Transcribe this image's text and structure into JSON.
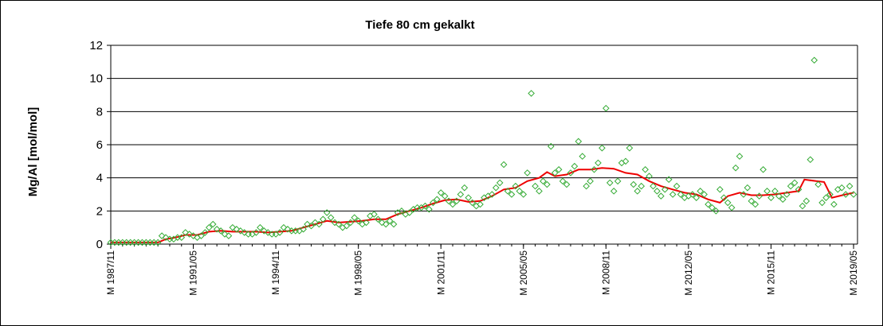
{
  "chart_data": {
    "type": "scatter",
    "title": "Tiefe   80 cm      gekalkt",
    "xlabel": "",
    "ylabel": "Mg/Al [mol/mol]",
    "ylim": [
      0,
      12
    ],
    "yticks": [
      0,
      2,
      4,
      6,
      8,
      10,
      12
    ],
    "xlim": [
      "1987-11",
      "2019-07"
    ],
    "xticks": [
      {
        "label": "M 1987/11",
        "date": "1987-11"
      },
      {
        "label": "M 1991/05",
        "date": "1991-05"
      },
      {
        "label": "M 1994/11",
        "date": "1994-11"
      },
      {
        "label": "M 1998/05",
        "date": "1998-05"
      },
      {
        "label": "M 2001/11",
        "date": "2001-11"
      },
      {
        "label": "M 2005/05",
        "date": "2005-05"
      },
      {
        "label": "M 2008/11",
        "date": "2008-11"
      },
      {
        "label": "M 2012/05",
        "date": "2012-05"
      },
      {
        "label": "M 2015/11",
        "date": "2015-11"
      },
      {
        "label": "M 2019/05",
        "date": "2019-05"
      }
    ],
    "grid": "horizontal",
    "legend": "none",
    "colors": {
      "points": "#33aa33",
      "trend": "#ee0000"
    },
    "series": [
      {
        "kind": "points",
        "points": [
          [
            "1987-11",
            0.1
          ],
          [
            "1988-01",
            0.1
          ],
          [
            "1988-03",
            0.1
          ],
          [
            "1988-05",
            0.1
          ],
          [
            "1988-07",
            0.1
          ],
          [
            "1988-09",
            0.1
          ],
          [
            "1988-11",
            0.1
          ],
          [
            "1989-01",
            0.1
          ],
          [
            "1989-03",
            0.1
          ],
          [
            "1989-05",
            0.1
          ],
          [
            "1989-07",
            0.1
          ],
          [
            "1989-09",
            0.1
          ],
          [
            "1989-11",
            0.1
          ],
          [
            "1990-01",
            0.5
          ],
          [
            "1990-03",
            0.4
          ],
          [
            "1990-05",
            0.3
          ],
          [
            "1990-07",
            0.3
          ],
          [
            "1990-09",
            0.4
          ],
          [
            "1990-11",
            0.4
          ],
          [
            "1991-01",
            0.7
          ],
          [
            "1991-03",
            0.6
          ],
          [
            "1991-05",
            0.5
          ],
          [
            "1991-07",
            0.4
          ],
          [
            "1991-09",
            0.5
          ],
          [
            "1991-11",
            0.7
          ],
          [
            "1992-01",
            1.0
          ],
          [
            "1992-03",
            1.2
          ],
          [
            "1992-05",
            0.9
          ],
          [
            "1992-07",
            0.8
          ],
          [
            "1992-09",
            0.6
          ],
          [
            "1992-11",
            0.5
          ],
          [
            "1993-01",
            1.0
          ],
          [
            "1993-03",
            0.9
          ],
          [
            "1993-05",
            0.8
          ],
          [
            "1993-07",
            0.7
          ],
          [
            "1993-09",
            0.6
          ],
          [
            "1993-11",
            0.6
          ],
          [
            "1994-01",
            0.7
          ],
          [
            "1994-03",
            1.0
          ],
          [
            "1994-05",
            0.8
          ],
          [
            "1994-07",
            0.7
          ],
          [
            "1994-09",
            0.6
          ],
          [
            "1994-11",
            0.6
          ],
          [
            "1995-01",
            0.7
          ],
          [
            "1995-03",
            1.0
          ],
          [
            "1995-05",
            0.9
          ],
          [
            "1995-07",
            0.8
          ],
          [
            "1995-09",
            0.8
          ],
          [
            "1995-11",
            0.8
          ],
          [
            "1996-01",
            0.9
          ],
          [
            "1996-03",
            1.2
          ],
          [
            "1996-05",
            1.1
          ],
          [
            "1996-07",
            1.3
          ],
          [
            "1996-09",
            1.2
          ],
          [
            "1996-11",
            1.5
          ],
          [
            "1997-01",
            1.9
          ],
          [
            "1997-03",
            1.6
          ],
          [
            "1997-05",
            1.3
          ],
          [
            "1997-07",
            1.2
          ],
          [
            "1997-09",
            1.0
          ],
          [
            "1997-11",
            1.1
          ],
          [
            "1998-01",
            1.3
          ],
          [
            "1998-03",
            1.6
          ],
          [
            "1998-05",
            1.4
          ],
          [
            "1998-07",
            1.2
          ],
          [
            "1998-09",
            1.3
          ],
          [
            "1998-11",
            1.7
          ],
          [
            "1999-01",
            1.8
          ],
          [
            "1999-03",
            1.5
          ],
          [
            "1999-05",
            1.3
          ],
          [
            "1999-07",
            1.2
          ],
          [
            "1999-09",
            1.4
          ],
          [
            "1999-11",
            1.2
          ],
          [
            "2000-01",
            1.9
          ],
          [
            "2000-03",
            2.0
          ],
          [
            "2000-05",
            1.8
          ],
          [
            "2000-07",
            1.9
          ],
          [
            "2000-09",
            2.1
          ],
          [
            "2000-11",
            2.2
          ],
          [
            "2001-01",
            2.2
          ],
          [
            "2001-03",
            2.3
          ],
          [
            "2001-05",
            2.1
          ],
          [
            "2001-07",
            2.5
          ],
          [
            "2001-09",
            2.7
          ],
          [
            "2001-11",
            3.1
          ],
          [
            "2002-01",
            2.9
          ],
          [
            "2002-03",
            2.6
          ],
          [
            "2002-05",
            2.4
          ],
          [
            "2002-07",
            2.6
          ],
          [
            "2002-09",
            3.0
          ],
          [
            "2002-11",
            3.4
          ],
          [
            "2003-01",
            2.8
          ],
          [
            "2003-03",
            2.5
          ],
          [
            "2003-05",
            2.3
          ],
          [
            "2003-07",
            2.4
          ],
          [
            "2003-09",
            2.8
          ],
          [
            "2003-11",
            2.9
          ],
          [
            "2004-01",
            3.0
          ],
          [
            "2004-03",
            3.4
          ],
          [
            "2004-05",
            3.7
          ],
          [
            "2004-07",
            4.8
          ],
          [
            "2004-09",
            3.2
          ],
          [
            "2004-11",
            3.0
          ],
          [
            "2005-01",
            3.5
          ],
          [
            "2005-03",
            3.2
          ],
          [
            "2005-05",
            3.0
          ],
          [
            "2005-07",
            4.3
          ],
          [
            "2005-09",
            9.1
          ],
          [
            "2005-11",
            3.5
          ],
          [
            "2006-01",
            3.2
          ],
          [
            "2006-03",
            3.8
          ],
          [
            "2006-05",
            3.6
          ],
          [
            "2006-07",
            5.9
          ],
          [
            "2006-09",
            4.3
          ],
          [
            "2006-11",
            4.5
          ],
          [
            "2007-01",
            3.8
          ],
          [
            "2007-03",
            3.6
          ],
          [
            "2007-05",
            4.3
          ],
          [
            "2007-07",
            4.7
          ],
          [
            "2007-09",
            6.2
          ],
          [
            "2007-11",
            5.3
          ],
          [
            "2008-01",
            3.5
          ],
          [
            "2008-03",
            3.8
          ],
          [
            "2008-05",
            4.5
          ],
          [
            "2008-07",
            4.9
          ],
          [
            "2008-09",
            5.8
          ],
          [
            "2008-11",
            8.2
          ],
          [
            "2009-01",
            3.7
          ],
          [
            "2009-03",
            3.2
          ],
          [
            "2009-05",
            3.8
          ],
          [
            "2009-07",
            4.9
          ],
          [
            "2009-09",
            5.0
          ],
          [
            "2009-11",
            5.8
          ],
          [
            "2010-01",
            3.6
          ],
          [
            "2010-03",
            3.2
          ],
          [
            "2010-05",
            3.5
          ],
          [
            "2010-07",
            4.5
          ],
          [
            "2010-09",
            4.1
          ],
          [
            "2010-11",
            3.5
          ],
          [
            "2011-01",
            3.2
          ],
          [
            "2011-03",
            2.9
          ],
          [
            "2011-05",
            3.3
          ],
          [
            "2011-07",
            3.9
          ],
          [
            "2011-09",
            3.0
          ],
          [
            "2011-11",
            3.5
          ],
          [
            "2012-01",
            3.0
          ],
          [
            "2012-03",
            2.8
          ],
          [
            "2012-05",
            2.9
          ],
          [
            "2012-07",
            3.0
          ],
          [
            "2012-09",
            2.8
          ],
          [
            "2012-11",
            3.2
          ],
          [
            "2013-01",
            3.0
          ],
          [
            "2013-03",
            2.4
          ],
          [
            "2013-05",
            2.2
          ],
          [
            "2013-07",
            2.0
          ],
          [
            "2013-09",
            3.3
          ],
          [
            "2013-11",
            2.8
          ],
          [
            "2014-01",
            2.5
          ],
          [
            "2014-03",
            2.2
          ],
          [
            "2014-05",
            4.6
          ],
          [
            "2014-07",
            5.3
          ],
          [
            "2014-09",
            3.0
          ],
          [
            "2014-11",
            3.4
          ],
          [
            "2015-01",
            2.6
          ],
          [
            "2015-03",
            2.4
          ],
          [
            "2015-05",
            2.9
          ],
          [
            "2015-07",
            4.5
          ],
          [
            "2015-09",
            3.2
          ],
          [
            "2015-11",
            2.8
          ],
          [
            "2016-01",
            3.2
          ],
          [
            "2016-03",
            2.9
          ],
          [
            "2016-05",
            2.7
          ],
          [
            "2016-07",
            3.0
          ],
          [
            "2016-09",
            3.5
          ],
          [
            "2016-11",
            3.7
          ],
          [
            "2017-01",
            3.3
          ],
          [
            "2017-03",
            2.3
          ],
          [
            "2017-05",
            2.6
          ],
          [
            "2017-07",
            5.1
          ],
          [
            "2017-09",
            11.1
          ],
          [
            "2017-11",
            3.6
          ],
          [
            "2018-01",
            2.5
          ],
          [
            "2018-03",
            2.8
          ],
          [
            "2018-05",
            3.0
          ],
          [
            "2018-07",
            2.4
          ],
          [
            "2018-09",
            3.3
          ],
          [
            "2018-11",
            3.4
          ],
          [
            "2019-01",
            3.0
          ],
          [
            "2019-03",
            3.5
          ],
          [
            "2019-05",
            3.0
          ]
        ]
      },
      {
        "kind": "trend",
        "points": [
          [
            "1987-11",
            0.1
          ],
          [
            "1988-06",
            0.1
          ],
          [
            "1989-02",
            0.1
          ],
          [
            "1989-11",
            0.1
          ],
          [
            "1990-03",
            0.3
          ],
          [
            "1990-08",
            0.4
          ],
          [
            "1991-01",
            0.55
          ],
          [
            "1991-07",
            0.55
          ],
          [
            "1992-01",
            0.75
          ],
          [
            "1992-07",
            0.8
          ],
          [
            "1993-01",
            0.75
          ],
          [
            "1993-07",
            0.75
          ],
          [
            "1994-01",
            0.75
          ],
          [
            "1994-07",
            0.7
          ],
          [
            "1995-01",
            0.75
          ],
          [
            "1995-07",
            0.8
          ],
          [
            "1996-01",
            1.0
          ],
          [
            "1996-07",
            1.2
          ],
          [
            "1997-01",
            1.4
          ],
          [
            "1997-07",
            1.3
          ],
          [
            "1998-01",
            1.35
          ],
          [
            "1998-07",
            1.4
          ],
          [
            "1999-01",
            1.5
          ],
          [
            "1999-07",
            1.5
          ],
          [
            "2000-01",
            1.8
          ],
          [
            "2000-07",
            2.0
          ],
          [
            "2001-01",
            2.2
          ],
          [
            "2001-07",
            2.45
          ],
          [
            "2002-01",
            2.65
          ],
          [
            "2002-07",
            2.7
          ],
          [
            "2003-01",
            2.55
          ],
          [
            "2003-07",
            2.6
          ],
          [
            "2004-01",
            2.9
          ],
          [
            "2004-07",
            3.3
          ],
          [
            "2005-01",
            3.4
          ],
          [
            "2005-07",
            3.8
          ],
          [
            "2006-01",
            4.0
          ],
          [
            "2006-05",
            4.35
          ],
          [
            "2006-09",
            4.1
          ],
          [
            "2007-03",
            4.2
          ],
          [
            "2007-09",
            4.5
          ],
          [
            "2008-03",
            4.5
          ],
          [
            "2008-09",
            4.6
          ],
          [
            "2009-03",
            4.55
          ],
          [
            "2009-09",
            4.3
          ],
          [
            "2010-03",
            4.2
          ],
          [
            "2010-09",
            3.8
          ],
          [
            "2011-03",
            3.5
          ],
          [
            "2011-09",
            3.3
          ],
          [
            "2012-03",
            3.1
          ],
          [
            "2012-09",
            3.0
          ],
          [
            "2013-03",
            2.7
          ],
          [
            "2013-09",
            2.5
          ],
          [
            "2014-01",
            2.9
          ],
          [
            "2014-07",
            3.1
          ],
          [
            "2015-01",
            2.95
          ],
          [
            "2015-07",
            2.95
          ],
          [
            "2016-01",
            3.0
          ],
          [
            "2016-07",
            3.1
          ],
          [
            "2017-01",
            3.2
          ],
          [
            "2017-04",
            3.9
          ],
          [
            "2017-10",
            3.8
          ],
          [
            "2018-02",
            3.75
          ],
          [
            "2018-06",
            2.8
          ],
          [
            "2019-01",
            3.0
          ],
          [
            "2019-05",
            3.1
          ]
        ]
      }
    ]
  }
}
